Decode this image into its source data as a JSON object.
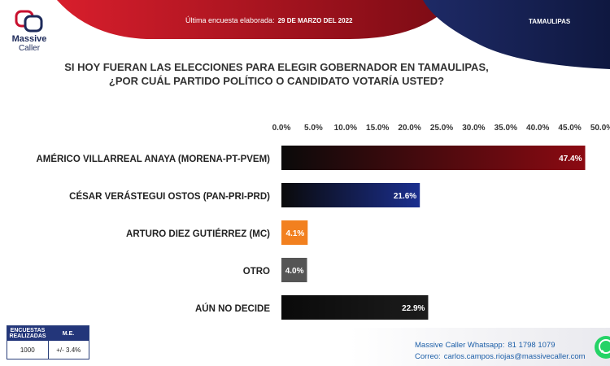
{
  "header": {
    "logo_line1": "Massive",
    "logo_line2": "Caller",
    "survey_label": "Última encuesta elaborada:",
    "survey_date": "29 DE MARZO DEL 2022",
    "state": "TAMAULIPAS"
  },
  "question": {
    "line1": "SI HOY FUERAN LAS ELECCIONES PARA ELEGIR GOBERNADOR EN TAMAULIPAS,",
    "line2": "¿POR CUÁL PARTIDO POLÍTICO O CANDIDATO VOTARÍA USTED?"
  },
  "chart_data": {
    "type": "bar",
    "orientation": "horizontal",
    "categories": [
      "AMÉRICO VILLARREAL ANAYA (MORENA-PT-PVEM)",
      "CÉSAR VERÁSTEGUI OSTOS (PAN-PRI-PRD)",
      "ARTURO DIEZ GUTIÉRREZ (MC)",
      "OTRO",
      "AÚN NO DECIDE"
    ],
    "values": [
      47.4,
      21.6,
      4.1,
      4.0,
      22.9
    ],
    "data_labels": [
      "47.4%",
      "21.6%",
      "4.1%",
      "4.0%",
      "22.9%"
    ],
    "bar_colors": [
      "#8c0a12",
      "#1b2f8f",
      "#f2801f",
      "#555555",
      "#1c1c1c"
    ],
    "xlim": [
      0,
      50
    ],
    "ticks": [
      "0.0%",
      "5.0%",
      "10.0%",
      "15.0%",
      "20.0%",
      "25.0%",
      "30.0%",
      "35.0%",
      "40.0%",
      "45.0%",
      "50.0%"
    ],
    "tick_position": "top",
    "grid": false
  },
  "methodology": {
    "col1_header": "ENCUESTAS REALIZADAS",
    "col2_header": "M.E.",
    "col1_value": "1000",
    "col2_value": "+/- 3.4%"
  },
  "contact": {
    "whatsapp_label": "Massive Caller Whatsapp:",
    "whatsapp_number": "81 1798 1079",
    "email_label": "Correo:",
    "email": "carlos.campos.riojas@massivecaller.com"
  },
  "colors": {
    "header_red": "#c8102e",
    "header_navy": "#1d2a5a",
    "accent_blue": "#1d5fa8",
    "whatsapp_green": "#25d366"
  }
}
